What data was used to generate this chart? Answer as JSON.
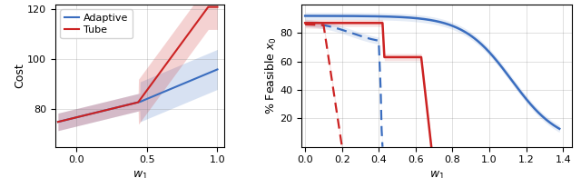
{
  "left_plot": {
    "xlabel": "$w_1$",
    "ylabel": "Cost",
    "xlim": [
      -0.15,
      1.05
    ],
    "ylim": [
      65,
      122
    ],
    "yticks": [
      80,
      100,
      120
    ],
    "xticks": [
      0.0,
      0.5,
      1.0
    ],
    "blue_color": "#3a6dbf",
    "red_color": "#cc2222",
    "blue_fill_alpha": 0.2,
    "red_fill_alpha": 0.2
  },
  "right_plot": {
    "xlabel": "$w_1$",
    "ylabel": "% Feasible $x_0$",
    "xlim": [
      -0.02,
      1.45
    ],
    "ylim": [
      0,
      100
    ],
    "yticks": [
      20,
      40,
      60,
      80
    ],
    "xticks": [
      0.0,
      0.2,
      0.4,
      0.6,
      0.8,
      1.0,
      1.2,
      1.4
    ],
    "blue_color": "#3a6dbf",
    "red_color": "#cc2222",
    "blue_fill_alpha": 0.13,
    "red_fill_alpha": 0.13
  },
  "legend": {
    "adaptive_label": "Adaptive",
    "tube_label": "Tube"
  }
}
